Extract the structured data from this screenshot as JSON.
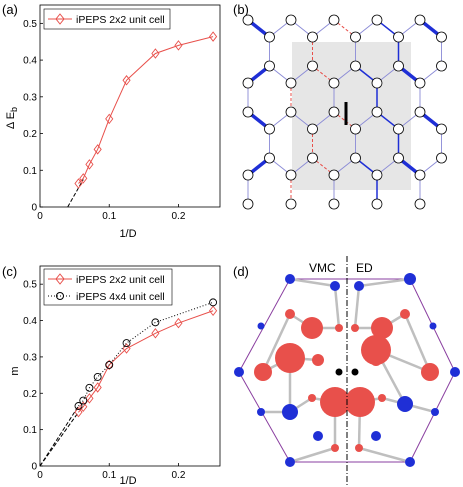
{
  "panel_labels": {
    "a": "(a)",
    "b": "(b)",
    "c": "(c)",
    "d": "(d)"
  },
  "colors": {
    "red": "#e8504b",
    "blue": "#1f2fd6",
    "purple": "#8a3fa0",
    "gray_region": "#e6e6e6",
    "gray_bond": "#bfbfbf",
    "black": "#000000"
  },
  "chart_data": [
    {
      "panel": "a",
      "type": "line",
      "xlabel": "1/D",
      "ylabel": "Δ E",
      "ylabel_sub": "b",
      "xlim": [
        0,
        0.26
      ],
      "ylim": [
        0,
        0.55
      ],
      "xticks": [
        0,
        0.1,
        0.2
      ],
      "xticklabels": [
        "0",
        "0.1",
        "0.2"
      ],
      "yticks": [
        0,
        0.1,
        0.2,
        0.3,
        0.4,
        0.5
      ],
      "yticklabels": [
        "0",
        "0.1",
        "0.2",
        "0.3",
        "0.4",
        "0.5"
      ],
      "legend_position": "top-left",
      "series": [
        {
          "name": "iPEPS 2x2 unit cell",
          "marker": "diamond",
          "color": "#e8504b",
          "x": [
            0.0556,
            0.0625,
            0.0714,
            0.0833,
            0.1,
            0.125,
            0.1667,
            0.2,
            0.25
          ],
          "y": [
            0.064,
            0.078,
            0.116,
            0.157,
            0.24,
            0.345,
            0.418,
            0.44,
            0.464
          ]
        }
      ],
      "extrapolation": {
        "style": "dashed",
        "color": "#000000",
        "x": [
          0.04,
          0.0625
        ],
        "y": [
          0.0,
          0.075
        ]
      }
    },
    {
      "panel": "c",
      "type": "line",
      "xlabel": "1/D",
      "ylabel": "m",
      "xlim": [
        0,
        0.26
      ],
      "ylim": [
        0,
        0.55
      ],
      "xticks": [
        0,
        0.1,
        0.2
      ],
      "xticklabels": [
        "0",
        "0.1",
        "0.2"
      ],
      "yticks": [
        0,
        0.1,
        0.2,
        0.3,
        0.4,
        0.5
      ],
      "yticklabels": [
        "0",
        "0.1",
        "0.2",
        "0.3",
        "0.4",
        "0.5"
      ],
      "legend_position": "top-left",
      "series": [
        {
          "name": "iPEPS 2x2 unit cell",
          "marker": "diamond",
          "color": "#e8504b",
          "line": "solid",
          "x": [
            0.0556,
            0.0625,
            0.0714,
            0.0833,
            0.1,
            0.125,
            0.1667,
            0.2,
            0.25
          ],
          "y": [
            0.148,
            0.163,
            0.186,
            0.216,
            0.278,
            0.323,
            0.365,
            0.393,
            0.427
          ]
        },
        {
          "name": "iPEPS 4x4 unit cell",
          "marker": "circle",
          "color": "#000000",
          "line": "dotted",
          "x": [
            0.0556,
            0.0625,
            0.0714,
            0.0833,
            0.1,
            0.125,
            0.1667,
            0.25
          ],
          "y": [
            0.165,
            0.18,
            0.215,
            0.245,
            0.278,
            0.338,
            0.395,
            0.45
          ]
        }
      ],
      "extrapolation": [
        {
          "style": "dashed",
          "color": "#000000",
          "x": [
            0.0,
            0.0556
          ],
          "y": [
            0.0,
            0.148
          ]
        },
        {
          "style": "dashed",
          "color": "#000000",
          "x": [
            0.0,
            0.0556
          ],
          "y": [
            0.0,
            0.165
          ]
        }
      ]
    }
  ],
  "panel_d": {
    "left_label": "VMC",
    "right_label": "ED"
  }
}
